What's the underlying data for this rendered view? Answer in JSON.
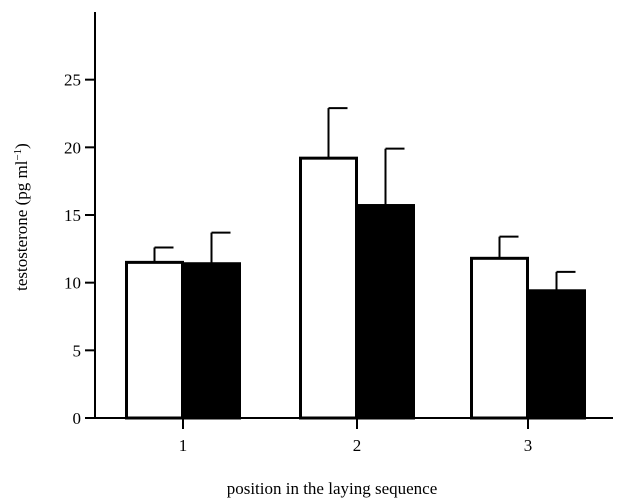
{
  "chart_data": {
    "type": "bar",
    "title": "",
    "xlabel": "position in the laying sequence",
    "ylabel": "testosterone (pg ml",
    "ylabel_sup": "−1",
    "ylabel_close": ")",
    "categories": [
      "1",
      "2",
      "3"
    ],
    "ylim": [
      0,
      30
    ],
    "yticks": [
      0,
      5,
      10,
      15,
      20,
      25
    ],
    "grid": false,
    "legend": "none",
    "series": [
      {
        "fill": "#ffffff",
        "values": [
          11.5,
          19.2,
          11.8
        ],
        "errors": [
          1.1,
          3.7,
          1.6
        ]
      },
      {
        "fill": "#000000",
        "values": [
          11.4,
          15.7,
          9.4
        ],
        "errors": [
          2.3,
          4.2,
          1.4
        ]
      }
    ]
  }
}
